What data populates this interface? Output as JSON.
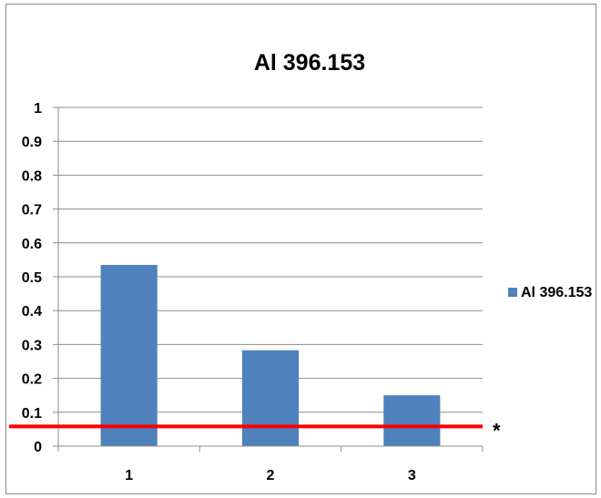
{
  "chart_data": {
    "type": "bar",
    "title": "Al 396.153",
    "xlabel": "",
    "ylabel": "",
    "categories": [
      "1",
      "2",
      "3"
    ],
    "series": [
      {
        "name": "Al 396.153",
        "values": [
          0.535,
          0.283,
          0.15
        ]
      }
    ],
    "ylim": [
      0,
      1
    ],
    "y_ticks": [
      "0",
      "0.1",
      "0.2",
      "0.3",
      "0.4",
      "0.5",
      "0.6",
      "0.7",
      "0.8",
      "0.9",
      "1"
    ],
    "grid": true,
    "legend": "right",
    "reference_line": {
      "value": 0.058,
      "label": "*"
    },
    "colors": {
      "bar": "#4f81bd",
      "reference_line": "#ff0000",
      "grid": "#8c8c8c"
    }
  }
}
